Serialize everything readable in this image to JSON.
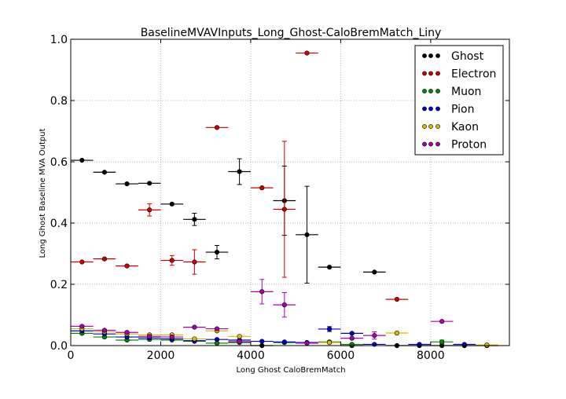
{
  "chart_data": {
    "type": "scatter",
    "title": "BaselineMVAVInputs_Long_Ghost-CaloBremMatch_Liny",
    "xlabel": "Long Ghost CaloBremMatch",
    "ylabel": "Long Ghost Baseline MVA Output",
    "xlim": [
      0,
      9750
    ],
    "ylim": [
      0.0,
      1.0
    ],
    "x_ticks": [
      0,
      2000,
      4000,
      6000,
      8000
    ],
    "x_tick_labels": [
      "0",
      "2000",
      "4000",
      "6000",
      "8000"
    ],
    "y_ticks": [
      0.0,
      0.2,
      0.4,
      0.6,
      0.8,
      1.0
    ],
    "y_tick_labels": [
      "0.0",
      "0.2",
      "0.4",
      "0.6",
      "0.8",
      "1.0"
    ],
    "grid": true,
    "legend_position": "top-right",
    "bin_half_width": 250,
    "series": [
      {
        "name": "Ghost",
        "color": "#000000",
        "points": [
          {
            "x": 250,
            "y": 0.605,
            "err": 0.0
          },
          {
            "x": 750,
            "y": 0.566,
            "err": 0.0
          },
          {
            "x": 1250,
            "y": 0.528,
            "err": 0.0
          },
          {
            "x": 1750,
            "y": 0.53,
            "err": 0.0
          },
          {
            "x": 2250,
            "y": 0.462,
            "err": 0.0
          },
          {
            "x": 2750,
            "y": 0.412,
            "err": 0.02
          },
          {
            "x": 3250,
            "y": 0.305,
            "err": 0.022
          },
          {
            "x": 3750,
            "y": 0.568,
            "err": 0.042
          },
          {
            "x": 4250,
            "y": 0.0,
            "err": 0.0
          },
          {
            "x": 4750,
            "y": 0.473,
            "err": 0.113
          },
          {
            "x": 5250,
            "y": 0.362,
            "err": 0.158
          },
          {
            "x": 5750,
            "y": 0.256,
            "err": 0.0
          },
          {
            "x": 6250,
            "y": 0.0,
            "err": 0.0
          },
          {
            "x": 6750,
            "y": 0.24,
            "err": 0.0
          },
          {
            "x": 7250,
            "y": 0.0,
            "err": 0.0
          },
          {
            "x": 7750,
            "y": 0.0,
            "err": 0.0
          },
          {
            "x": 8250,
            "y": 0.0,
            "err": 0.0
          },
          {
            "x": 8750,
            "y": 0.0,
            "err": 0.0
          },
          {
            "x": 9250,
            "y": 0.0,
            "err": 0.0
          }
        ]
      },
      {
        "name": "Electron",
        "color": "#cc0000",
        "points": [
          {
            "x": 250,
            "y": 0.273,
            "err": 0.0
          },
          {
            "x": 750,
            "y": 0.283,
            "err": 0.0
          },
          {
            "x": 1250,
            "y": 0.26,
            "err": 0.0
          },
          {
            "x": 1750,
            "y": 0.443,
            "err": 0.02
          },
          {
            "x": 2250,
            "y": 0.278,
            "err": 0.016
          },
          {
            "x": 2750,
            "y": 0.273,
            "err": 0.04
          },
          {
            "x": 3250,
            "y": 0.712,
            "err": 0.0
          },
          {
            "x": 4250,
            "y": 0.515,
            "err": 0.0
          },
          {
            "x": 4750,
            "y": 0.445,
            "err": 0.222
          },
          {
            "x": 5250,
            "y": 0.955,
            "err": 0.0
          },
          {
            "x": 7250,
            "y": 0.151,
            "err": 0.0
          }
        ]
      },
      {
        "name": "Muon",
        "color": "#008800",
        "points": [
          {
            "x": 250,
            "y": 0.04,
            "err": 0.0
          },
          {
            "x": 750,
            "y": 0.028,
            "err": 0.0
          },
          {
            "x": 1250,
            "y": 0.018,
            "err": 0.0
          },
          {
            "x": 1750,
            "y": 0.02,
            "err": 0.0
          },
          {
            "x": 2250,
            "y": 0.018,
            "err": 0.0
          },
          {
            "x": 2750,
            "y": 0.014,
            "err": 0.0
          },
          {
            "x": 3250,
            "y": 0.008,
            "err": 0.0
          },
          {
            "x": 3750,
            "y": 0.01,
            "err": 0.0
          },
          {
            "x": 4750,
            "y": 0.01,
            "err": 0.0
          },
          {
            "x": 5750,
            "y": 0.012,
            "err": 0.0
          },
          {
            "x": 6250,
            "y": 0.004,
            "err": 0.0
          },
          {
            "x": 8250,
            "y": 0.012,
            "err": 0.006
          }
        ]
      },
      {
        "name": "Pion",
        "color": "#0000cc",
        "points": [
          {
            "x": 250,
            "y": 0.048,
            "err": 0.0
          },
          {
            "x": 750,
            "y": 0.038,
            "err": 0.0
          },
          {
            "x": 1250,
            "y": 0.028,
            "err": 0.0
          },
          {
            "x": 1750,
            "y": 0.025,
            "err": 0.0
          },
          {
            "x": 2250,
            "y": 0.022,
            "err": 0.0
          },
          {
            "x": 2750,
            "y": 0.016,
            "err": 0.0
          },
          {
            "x": 3250,
            "y": 0.02,
            "err": 0.0
          },
          {
            "x": 3750,
            "y": 0.018,
            "err": 0.0
          },
          {
            "x": 4250,
            "y": 0.014,
            "err": 0.0
          },
          {
            "x": 4750,
            "y": 0.012,
            "err": 0.0
          },
          {
            "x": 5250,
            "y": 0.01,
            "err": 0.0
          },
          {
            "x": 5750,
            "y": 0.054,
            "err": 0.008
          },
          {
            "x": 6250,
            "y": 0.04,
            "err": 0.0
          },
          {
            "x": 6750,
            "y": 0.004,
            "err": 0.0
          },
          {
            "x": 7750,
            "y": 0.004,
            "err": 0.0
          },
          {
            "x": 8750,
            "y": 0.004,
            "err": 0.0
          }
        ]
      },
      {
        "name": "Kaon",
        "color": "#ddbb00",
        "points": [
          {
            "x": 250,
            "y": 0.055,
            "err": 0.0
          },
          {
            "x": 750,
            "y": 0.045,
            "err": 0.0
          },
          {
            "x": 1250,
            "y": 0.038,
            "err": 0.0
          },
          {
            "x": 1750,
            "y": 0.035,
            "err": 0.0
          },
          {
            "x": 2250,
            "y": 0.035,
            "err": 0.0
          },
          {
            "x": 2750,
            "y": 0.022,
            "err": 0.0
          },
          {
            "x": 3250,
            "y": 0.048,
            "err": 0.0
          },
          {
            "x": 3750,
            "y": 0.03,
            "err": 0.0
          },
          {
            "x": 5750,
            "y": 0.01,
            "err": 0.0
          },
          {
            "x": 7250,
            "y": 0.041,
            "err": 0.0
          },
          {
            "x": 9250,
            "y": 0.002,
            "err": 0.0
          }
        ]
      },
      {
        "name": "Proton",
        "color": "#aa00aa",
        "points": [
          {
            "x": 250,
            "y": 0.063,
            "err": 0.0
          },
          {
            "x": 750,
            "y": 0.05,
            "err": 0.0
          },
          {
            "x": 1250,
            "y": 0.043,
            "err": 0.0
          },
          {
            "x": 1750,
            "y": 0.03,
            "err": 0.0
          },
          {
            "x": 2250,
            "y": 0.028,
            "err": 0.0
          },
          {
            "x": 2750,
            "y": 0.06,
            "err": 0.0
          },
          {
            "x": 3250,
            "y": 0.055,
            "err": 0.0
          },
          {
            "x": 3750,
            "y": 0.013,
            "err": 0.0
          },
          {
            "x": 4250,
            "y": 0.176,
            "err": 0.04
          },
          {
            "x": 4750,
            "y": 0.133,
            "err": 0.04
          },
          {
            "x": 5250,
            "y": 0.008,
            "err": 0.0
          },
          {
            "x": 6250,
            "y": 0.024,
            "err": 0.0
          },
          {
            "x": 6750,
            "y": 0.033,
            "err": 0.012
          },
          {
            "x": 8250,
            "y": 0.079,
            "err": 0.0
          }
        ]
      }
    ]
  }
}
